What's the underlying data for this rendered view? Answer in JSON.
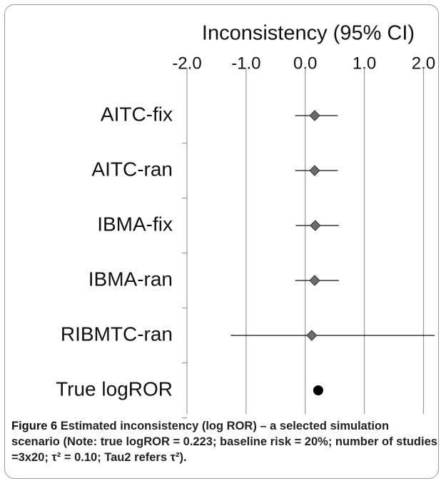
{
  "chart_data": {
    "type": "forest",
    "title": "Inconsistency (95% CI)",
    "categories": [
      "AITC-fix",
      "AITC-ran",
      "IBMA-fix",
      "IBMA-ran",
      "RIBMTC-ran",
      "True logROR"
    ],
    "values": [
      0.16,
      0.16,
      0.17,
      0.16,
      0.11,
      0.22
    ],
    "lower": [
      -0.17,
      -0.17,
      -0.16,
      -0.17,
      -1.26,
      null
    ],
    "upper": [
      0.55,
      0.55,
      0.57,
      0.57,
      2.19,
      null
    ],
    "markers": [
      "diamond",
      "diamond",
      "diamond",
      "diamond",
      "diamond",
      "circle"
    ],
    "colors": [
      "#6b6b6b",
      "#6b6b6b",
      "#6b6b6b",
      "#6b6b6b",
      "#6b6b6b",
      "#000000"
    ],
    "xlim": [
      -2.0,
      2.2
    ],
    "xticks": [
      {
        "value": -2,
        "label": "-2.0"
      },
      {
        "value": -1,
        "label": "-1.0"
      },
      {
        "value": 0,
        "label": "0.0"
      },
      {
        "value": 1,
        "label": "1.0"
      },
      {
        "value": 2,
        "label": "2.0"
      }
    ],
    "grid": true
  },
  "caption": {
    "label": "Figure 6",
    "text": "Estimated inconsistency (log ROR) – a selected simulation scenario (Note: true logROR = 0.223; baseline risk = 20%; number of studies =3x20; τ² = 0.10; Tau2 refers τ²)."
  }
}
